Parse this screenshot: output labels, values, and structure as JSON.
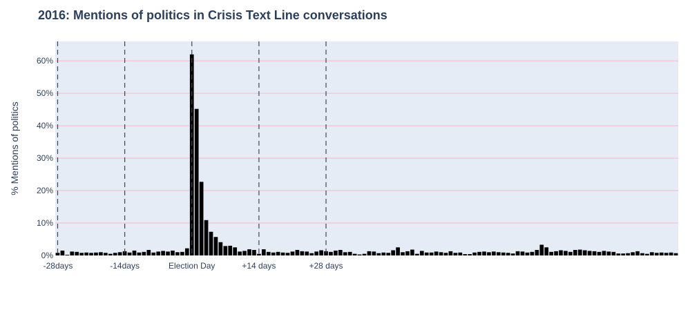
{
  "chart_data": {
    "type": "bar",
    "title": "2016: Mentions of politics in Crisis Text Line conversations",
    "ylabel": "% Mentions of politics",
    "xlabel": "",
    "x_start": -28,
    "x_tick_values": [
      -28,
      -14,
      0,
      14,
      28
    ],
    "x_tick_labels": [
      "-28days",
      "-14days",
      "Election Day",
      "+14 days",
      "+28 days"
    ],
    "y_tick_values": [
      0,
      10,
      20,
      30,
      40,
      50,
      60
    ],
    "y_tick_labels": [
      "0%",
      "10%",
      "20%",
      "30%",
      "40%",
      "50%",
      "60%"
    ],
    "ylim": [
      0,
      66
    ],
    "vlines_at": [
      -28,
      -14,
      0,
      14,
      28
    ],
    "colors": {
      "bar": "#000000",
      "plot_bg": "#e5ecf6",
      "grid": "#ffb6c1",
      "vline": "#444444"
    },
    "values": [
      0.8,
      1.5,
      0.2,
      1.2,
      1.1,
      0.8,
      0.9,
      0.8,
      0.9,
      1.0,
      0.8,
      0.5,
      0.8,
      1.0,
      1.3,
      0.9,
      1.5,
      0.9,
      1.1,
      1.7,
      0.9,
      1.2,
      1.4,
      1.2,
      1.5,
      1.0,
      1.1,
      2.2,
      62.0,
      45.2,
      22.7,
      10.9,
      7.3,
      5.7,
      4.1,
      2.9,
      3.0,
      2.5,
      1.2,
      1.4,
      1.9,
      1.7,
      0.5,
      1.9,
      1.1,
      0.9,
      1.1,
      0.9,
      0.8,
      1.2,
      1.7,
      1.3,
      1.2,
      0.7,
      1.2,
      1.6,
      1.3,
      1.1,
      1.5,
      1.7,
      1.0,
      1.1,
      0.5,
      0.3,
      0.5,
      1.3,
      1.2,
      0.7,
      0.9,
      0.8,
      1.6,
      2.5,
      1.0,
      1.3,
      1.8,
      0.5,
      1.4,
      0.9,
      0.9,
      1.2,
      1.0,
      0.8,
      1.3,
      0.8,
      0.9,
      0.4,
      0.4,
      0.9,
      1.1,
      1.2,
      1.0,
      1.2,
      1.0,
      0.9,
      0.8,
      0.6,
      1.3,
      1.2,
      0.9,
      1.1,
      1.7,
      3.3,
      2.5,
      1.1,
      1.3,
      1.6,
      1.4,
      1.1,
      1.7,
      1.8,
      1.6,
      1.4,
      1.3,
      1.1,
      1.4,
      1.2,
      1.1,
      0.6,
      0.6,
      0.7,
      1.0,
      1.3,
      0.7,
      0.5,
      1.0,
      0.8,
      0.9,
      0.8,
      0.9,
      0.7
    ]
  }
}
